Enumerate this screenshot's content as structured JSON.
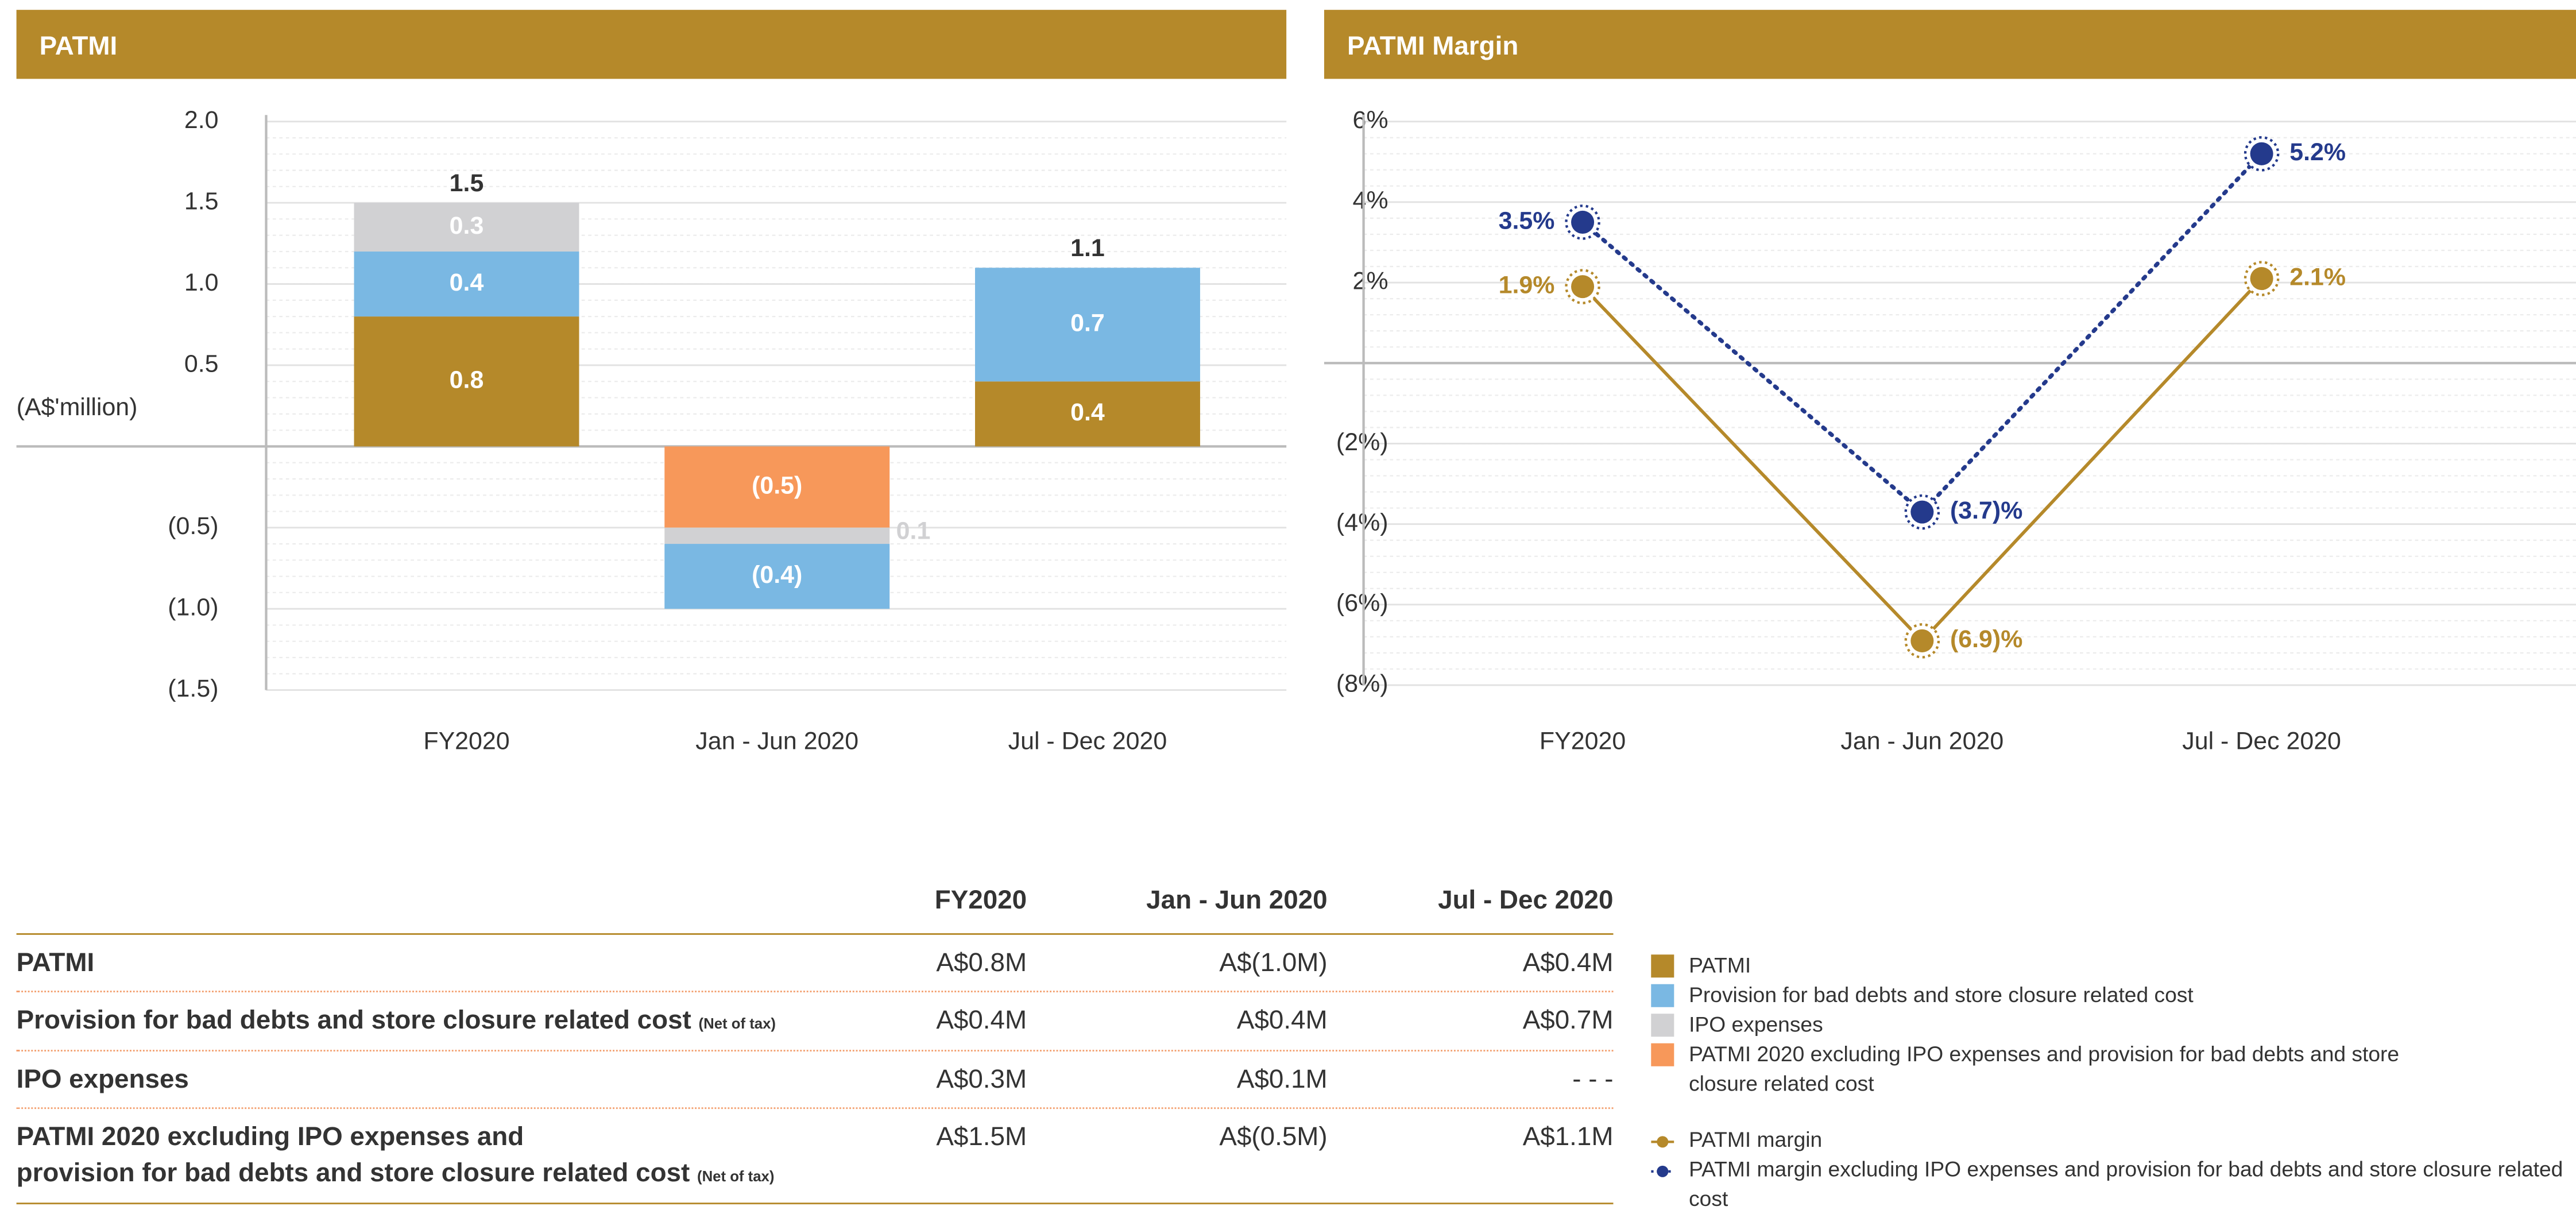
{
  "chart_data": [
    {
      "type": "bar",
      "stacked": true,
      "title": "PATMI",
      "ylabel": "(A$'million)",
      "categories": [
        "FY2020",
        "Jan - Jun 2020",
        "Jul - Dec 2020"
      ],
      "series": [
        {
          "name": "PATMI",
          "color": "#b5892a",
          "values": [
            0.8,
            null,
            0.4
          ]
        },
        {
          "name": "Provision for bad debts and store closure related cost",
          "color": "#7ab8e3",
          "values": [
            0.4,
            -0.4,
            0.7
          ],
          "value_labels": [
            "0.4",
            "(0.4)",
            "0.7"
          ]
        },
        {
          "name": "IPO expenses",
          "color": "#d1d1d3",
          "values": [
            0.3,
            -0.1,
            null
          ],
          "value_labels": [
            "0.3",
            "0.1",
            null
          ]
        },
        {
          "name": "PATMI 2020 excluding IPO expenses and provision for bad debts and store closure related cost",
          "color": "#f7985a",
          "values": [
            null,
            -0.5,
            null
          ],
          "value_labels": [
            null,
            "(0.5)",
            null
          ]
        }
      ],
      "totals": [
        1.5,
        null,
        1.1
      ],
      "ylim": [
        -1.5,
        2.0
      ],
      "yticks": [
        {
          "value": 2,
          "label": "2.0"
        },
        1.5,
        {
          "value": 1,
          "label": "1.0"
        },
        0.5,
        {
          "value": -0.5,
          "label": "(0.5)"
        },
        {
          "value": -1,
          "label": "(1.0)"
        },
        {
          "value": -1.5,
          "label": "(1.5)"
        }
      ],
      "grid": true
    },
    {
      "type": "line",
      "title": "PATMI Margin",
      "categories": [
        "FY2020",
        "Jan - Jun 2020",
        "Jul - Dec 2020"
      ],
      "series": [
        {
          "name": "PATMI margin",
          "color": "#b5892a",
          "dash": false,
          "values": [
            1.9,
            -6.9,
            2.1
          ],
          "value_labels": [
            "1.9%",
            "(6.9)%",
            "2.1%"
          ]
        },
        {
          "name": "PATMI margin excluding IPO expenses and provision for bad debts and store closure related cost",
          "color": "#243a8c",
          "dash": true,
          "values": [
            3.5,
            -3.7,
            5.2
          ],
          "value_labels": [
            "3.5%",
            "(3.7)%",
            "5.2%"
          ]
        }
      ],
      "ylim": [
        -8,
        6
      ],
      "yticks": [
        {
          "value": 6,
          "label": "6%"
        },
        {
          "value": 4,
          "label": "4%"
        },
        {
          "value": 2,
          "label": "2%"
        },
        {
          "value": -2,
          "label": "(2%)"
        },
        {
          "value": -4,
          "label": "(4%)"
        },
        {
          "value": -6,
          "label": "(6%)"
        },
        {
          "value": -8,
          "label": "(8%)"
        }
      ],
      "grid": true
    }
  ],
  "table": {
    "columns": [
      "FY2020",
      "Jan - Jun 2020",
      "Jul - Dec 2020"
    ],
    "rows": [
      {
        "label": "PATMI",
        "values": [
          "A$0.8M",
          "A$(1.0M)",
          "A$0.4M"
        ]
      },
      {
        "label": "Provision for bad debts and store closure related cost",
        "note": "(Net of tax)",
        "values": [
          "A$0.4M",
          "A$0.4M",
          "A$0.7M"
        ]
      },
      {
        "label": "IPO expenses",
        "values": [
          "A$0.3M",
          "A$0.1M",
          "- - -"
        ]
      },
      {
        "label": "PATMI 2020 excluding IPO expenses and\nprovision for bad debts and store closure related cost",
        "note": "(Net of tax)",
        "values": [
          "A$1.5M",
          "A$(0.5M)",
          "A$1.1M"
        ]
      }
    ]
  }
}
